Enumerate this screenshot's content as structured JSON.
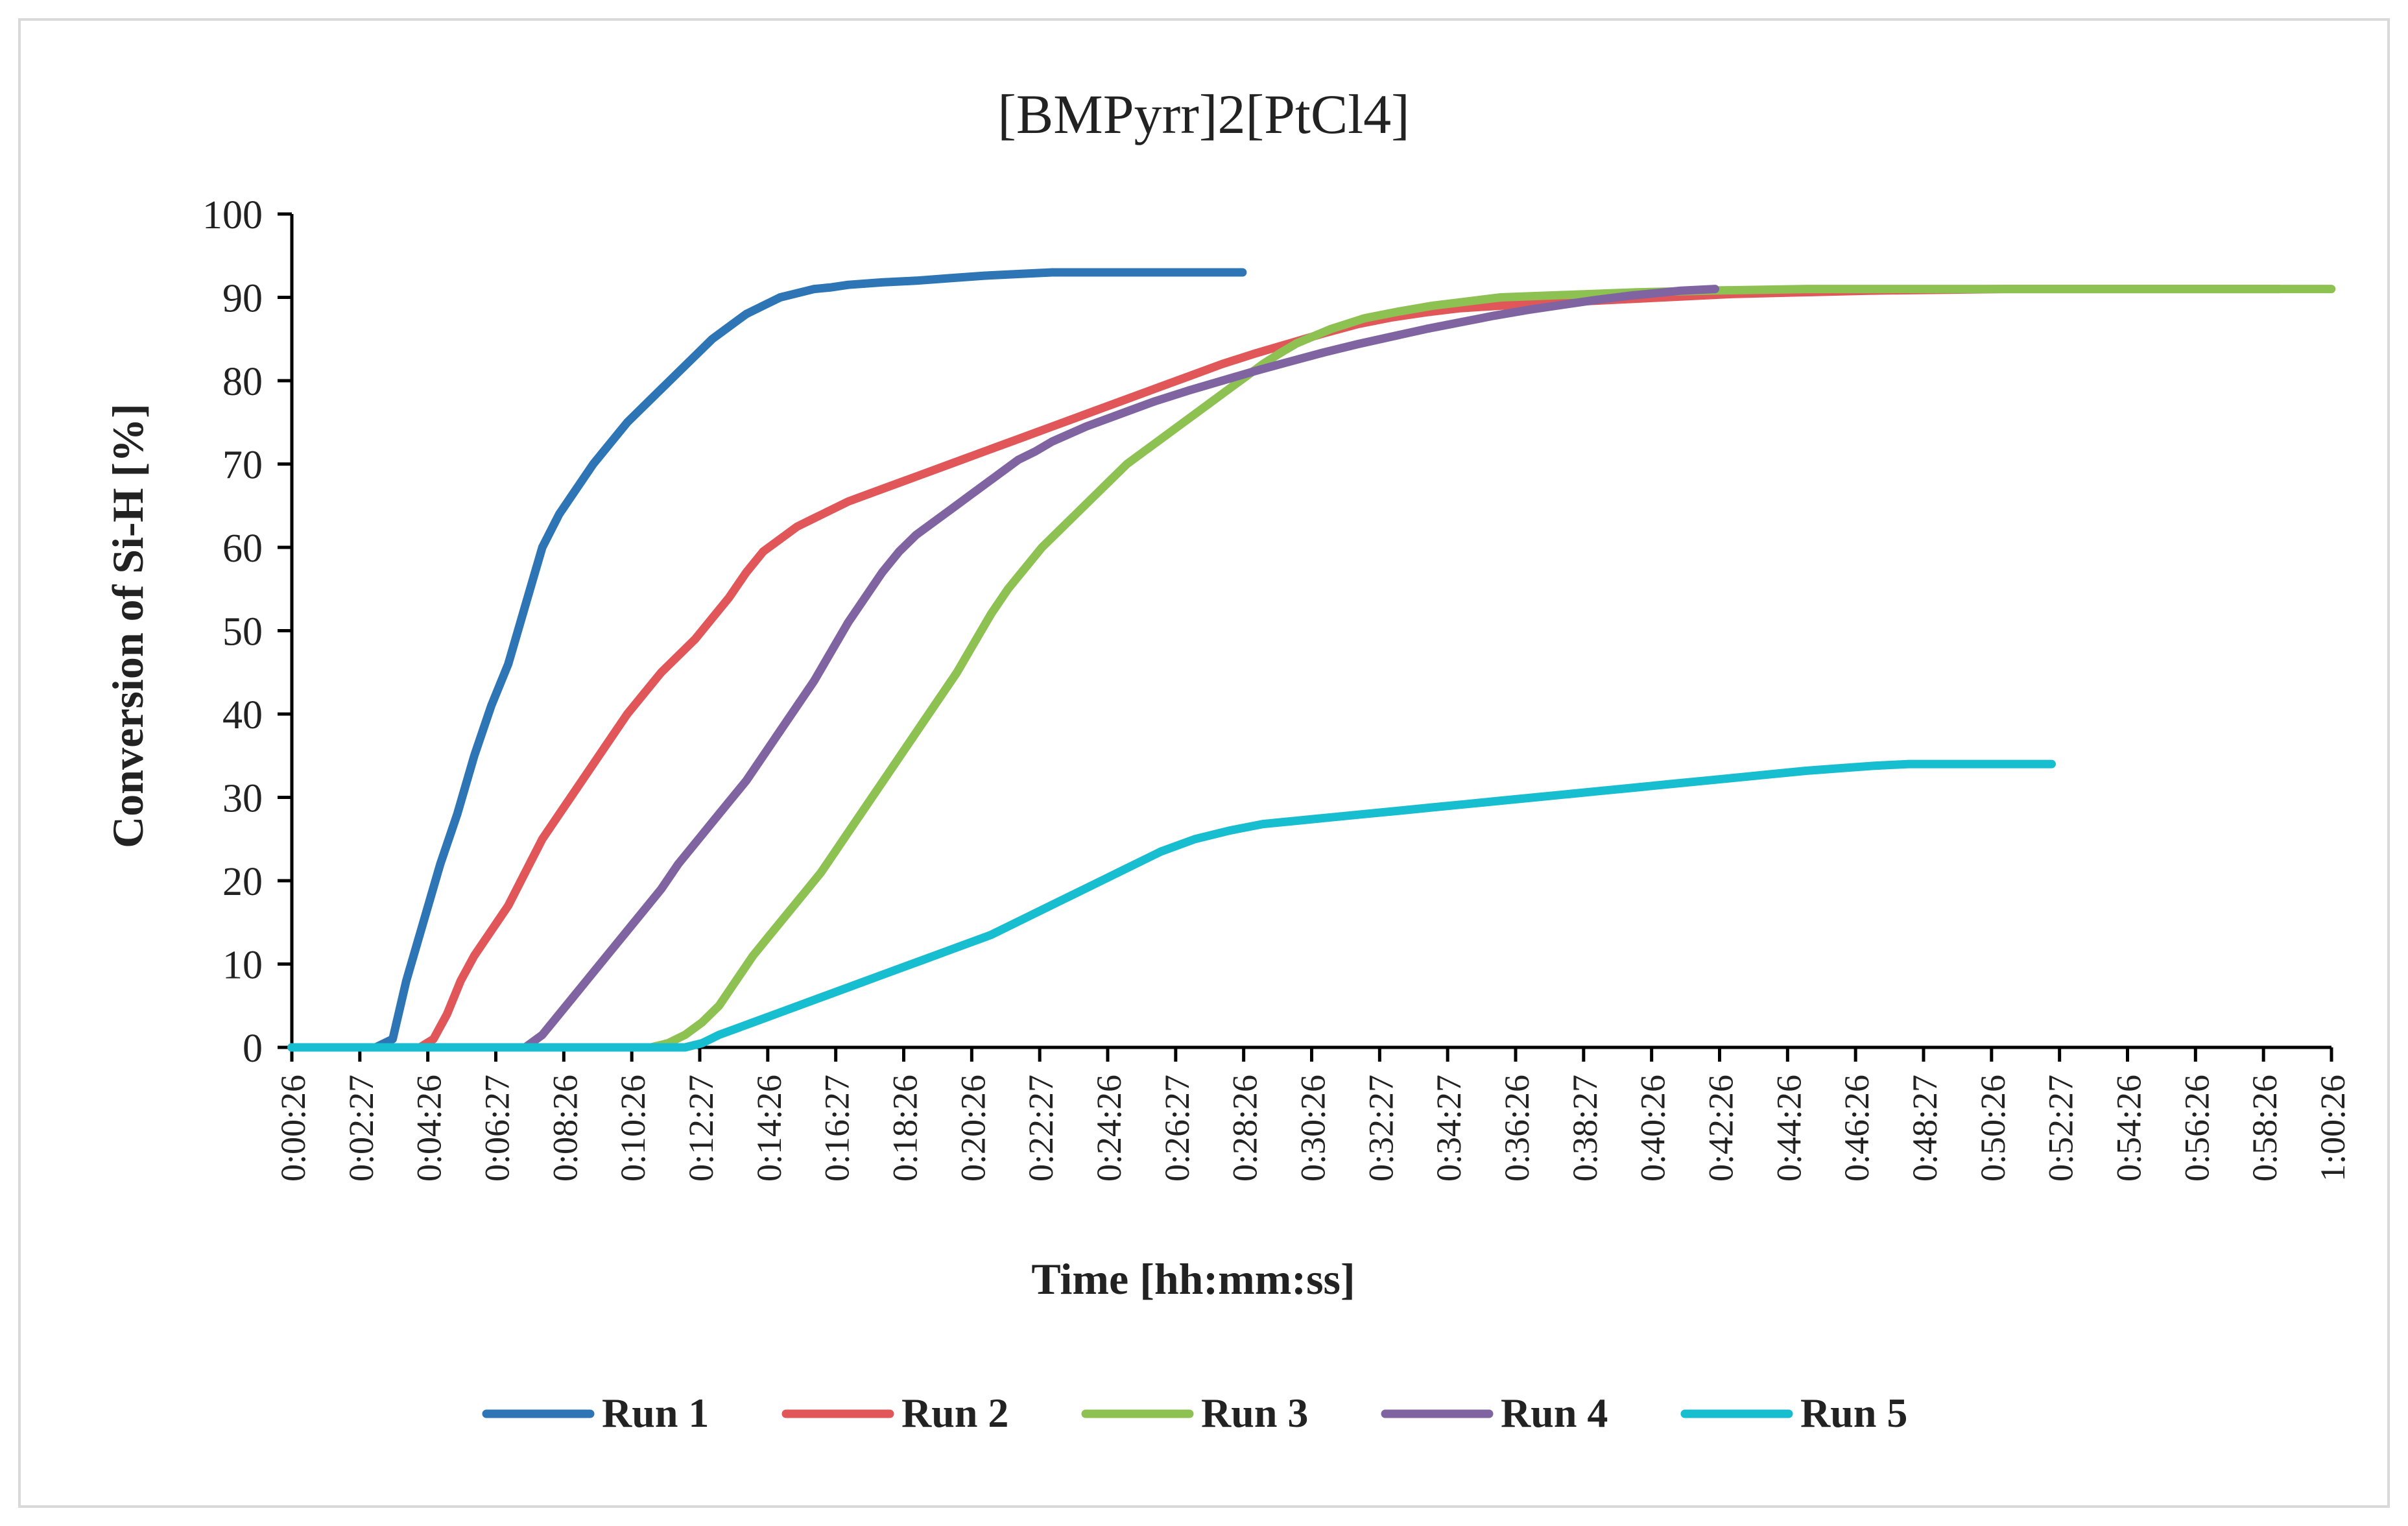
{
  "chart_data": {
    "type": "line",
    "title": "[BMPyrr]2[PtCl4]",
    "xlabel": "Time [hh:mm:ss]",
    "ylabel": "Conversion of Si-H [%]",
    "ylim": [
      0,
      100
    ],
    "yticks": [
      0,
      10,
      20,
      30,
      40,
      50,
      60,
      70,
      80,
      90,
      100
    ],
    "xlim_minutes": [
      0.433,
      60.433
    ],
    "xtick_labels": [
      "0:00:26",
      "0:02:27",
      "0:04:26",
      "0:06:27",
      "0:08:26",
      "0:10:26",
      "0:12:27",
      "0:14:26",
      "0:16:27",
      "0:18:26",
      "0:20:26",
      "0:22:27",
      "0:24:26",
      "0:26:27",
      "0:28:26",
      "0:30:26",
      "0:32:27",
      "0:34:27",
      "0:36:26",
      "0:38:27",
      "0:40:26",
      "0:42:26",
      "0:44:26",
      "0:46:26",
      "0:48:27",
      "0:50:26",
      "0:52:27",
      "0:54:26",
      "0:56:26",
      "0:58:26",
      "1:00:26"
    ],
    "grid": false,
    "legend_position": "bottom",
    "x_unit": "minutes",
    "series": [
      {
        "name": "Run 1",
        "color": "#2E75B6",
        "points": [
          [
            0.43,
            0
          ],
          [
            2.9,
            0
          ],
          [
            3.4,
            1
          ],
          [
            3.8,
            8
          ],
          [
            4.3,
            15
          ],
          [
            4.8,
            22
          ],
          [
            5.3,
            28
          ],
          [
            5.8,
            35
          ],
          [
            6.3,
            41
          ],
          [
            6.8,
            46
          ],
          [
            7.3,
            53
          ],
          [
            7.8,
            60
          ],
          [
            8.3,
            64
          ],
          [
            8.8,
            67
          ],
          [
            9.3,
            70
          ],
          [
            9.8,
            72.5
          ],
          [
            10.3,
            75
          ],
          [
            10.8,
            77
          ],
          [
            11.3,
            79
          ],
          [
            11.8,
            81
          ],
          [
            12.3,
            83
          ],
          [
            12.8,
            85
          ],
          [
            13.3,
            86.5
          ],
          [
            13.8,
            88
          ],
          [
            14.3,
            89
          ],
          [
            14.8,
            90
          ],
          [
            15.3,
            90.5
          ],
          [
            15.8,
            91
          ],
          [
            16.3,
            91.2
          ],
          [
            16.8,
            91.5
          ],
          [
            17.8,
            91.8
          ],
          [
            18.8,
            92
          ],
          [
            19.8,
            92.3
          ],
          [
            20.8,
            92.6
          ],
          [
            21.8,
            92.8
          ],
          [
            22.8,
            93
          ],
          [
            24.8,
            93
          ],
          [
            26.8,
            93
          ],
          [
            28.4,
            93
          ]
        ]
      },
      {
        "name": "Run 2",
        "color": "#E15759",
        "points": [
          [
            0.43,
            0
          ],
          [
            4.2,
            0
          ],
          [
            4.6,
            1
          ],
          [
            5.0,
            4
          ],
          [
            5.4,
            8
          ],
          [
            5.8,
            11
          ],
          [
            6.3,
            14
          ],
          [
            6.8,
            17
          ],
          [
            7.3,
            21
          ],
          [
            7.8,
            25
          ],
          [
            8.3,
            28
          ],
          [
            8.8,
            31
          ],
          [
            9.3,
            34
          ],
          [
            9.8,
            37
          ],
          [
            10.3,
            40
          ],
          [
            10.8,
            42.5
          ],
          [
            11.3,
            45
          ],
          [
            11.8,
            47
          ],
          [
            12.3,
            49
          ],
          [
            12.8,
            51.5
          ],
          [
            13.3,
            54
          ],
          [
            13.8,
            57
          ],
          [
            14.3,
            59.5
          ],
          [
            14.8,
            61
          ],
          [
            15.3,
            62.5
          ],
          [
            15.8,
            63.5
          ],
          [
            16.3,
            64.5
          ],
          [
            16.8,
            65.5
          ],
          [
            17.8,
            67
          ],
          [
            18.8,
            68.5
          ],
          [
            19.8,
            70
          ],
          [
            20.8,
            71.5
          ],
          [
            21.8,
            73
          ],
          [
            22.8,
            74.5
          ],
          [
            23.8,
            76
          ],
          [
            24.8,
            77.5
          ],
          [
            25.8,
            79
          ],
          [
            26.8,
            80.5
          ],
          [
            27.8,
            82
          ],
          [
            28.8,
            83.3
          ],
          [
            29.8,
            84.5
          ],
          [
            30.8,
            85.7
          ],
          [
            31.8,
            86.8
          ],
          [
            32.8,
            87.6
          ],
          [
            33.8,
            88.2
          ],
          [
            34.8,
            88.7
          ],
          [
            36.8,
            89.2
          ],
          [
            38.8,
            89.6
          ],
          [
            40.8,
            90
          ],
          [
            42.8,
            90.4
          ],
          [
            44.8,
            90.6
          ],
          [
            46.8,
            90.8
          ],
          [
            50.8,
            91
          ],
          [
            55.8,
            91
          ],
          [
            58.9,
            91
          ]
        ]
      },
      {
        "name": "Run 3",
        "color": "#8DC152",
        "points": [
          [
            0.43,
            0
          ],
          [
            11.0,
            0
          ],
          [
            11.5,
            0.5
          ],
          [
            12.0,
            1.5
          ],
          [
            12.5,
            3
          ],
          [
            13.0,
            5
          ],
          [
            13.5,
            8
          ],
          [
            14.0,
            11
          ],
          [
            14.5,
            13.5
          ],
          [
            15.0,
            16
          ],
          [
            15.5,
            18.5
          ],
          [
            16.0,
            21
          ],
          [
            16.5,
            24
          ],
          [
            17.0,
            27
          ],
          [
            17.5,
            30
          ],
          [
            18.0,
            33
          ],
          [
            18.5,
            36
          ],
          [
            19.0,
            39
          ],
          [
            19.5,
            42
          ],
          [
            20.0,
            45
          ],
          [
            20.5,
            48.5
          ],
          [
            21.0,
            52
          ],
          [
            21.5,
            55
          ],
          [
            22.0,
            57.5
          ],
          [
            22.5,
            60
          ],
          [
            23.0,
            62
          ],
          [
            23.5,
            64
          ],
          [
            24.0,
            66
          ],
          [
            24.5,
            68
          ],
          [
            25.0,
            70
          ],
          [
            25.5,
            71.5
          ],
          [
            26.0,
            73
          ],
          [
            26.5,
            74.5
          ],
          [
            27.0,
            76
          ],
          [
            27.5,
            77.5
          ],
          [
            28.0,
            79
          ],
          [
            28.5,
            80.5
          ],
          [
            29.0,
            82
          ],
          [
            29.5,
            83.3
          ],
          [
            30.0,
            84.5
          ],
          [
            31.0,
            86.2
          ],
          [
            32.0,
            87.5
          ],
          [
            33.0,
            88.3
          ],
          [
            34.0,
            89
          ],
          [
            35.0,
            89.5
          ],
          [
            36.0,
            90
          ],
          [
            38.0,
            90.3
          ],
          [
            40.0,
            90.6
          ],
          [
            42.0,
            90.8
          ],
          [
            45.0,
            91
          ],
          [
            50.0,
            91
          ],
          [
            55.0,
            91
          ],
          [
            60.43,
            91
          ]
        ]
      },
      {
        "name": "Run 4",
        "color": "#8064A2",
        "points": [
          [
            0.43,
            0
          ],
          [
            7.3,
            0
          ],
          [
            7.8,
            1.5
          ],
          [
            8.3,
            4
          ],
          [
            8.8,
            6.5
          ],
          [
            9.3,
            9
          ],
          [
            9.8,
            11.5
          ],
          [
            10.3,
            14
          ],
          [
            10.8,
            16.5
          ],
          [
            11.3,
            19
          ],
          [
            11.8,
            22
          ],
          [
            12.3,
            24.5
          ],
          [
            12.8,
            27
          ],
          [
            13.3,
            29.5
          ],
          [
            13.8,
            32
          ],
          [
            14.3,
            35
          ],
          [
            14.8,
            38
          ],
          [
            15.3,
            41
          ],
          [
            15.8,
            44
          ],
          [
            16.3,
            47.5
          ],
          [
            16.8,
            51
          ],
          [
            17.3,
            54
          ],
          [
            17.8,
            57
          ],
          [
            18.3,
            59.5
          ],
          [
            18.8,
            61.5
          ],
          [
            19.3,
            63
          ],
          [
            19.8,
            64.5
          ],
          [
            20.3,
            66
          ],
          [
            20.8,
            67.5
          ],
          [
            21.3,
            69
          ],
          [
            21.8,
            70.5
          ],
          [
            22.3,
            71.5
          ],
          [
            22.8,
            72.7
          ],
          [
            23.8,
            74.5
          ],
          [
            24.8,
            76
          ],
          [
            25.8,
            77.5
          ],
          [
            26.8,
            78.8
          ],
          [
            27.8,
            80
          ],
          [
            28.8,
            81.2
          ],
          [
            29.8,
            82.3
          ],
          [
            30.8,
            83.4
          ],
          [
            31.8,
            84.4
          ],
          [
            32.8,
            85.3
          ],
          [
            33.8,
            86.2
          ],
          [
            34.8,
            87
          ],
          [
            35.8,
            87.8
          ],
          [
            36.8,
            88.5
          ],
          [
            37.8,
            89.1
          ],
          [
            38.8,
            89.7
          ],
          [
            39.8,
            90.2
          ],
          [
            40.8,
            90.6
          ],
          [
            41.3,
            90.8
          ],
          [
            42.3,
            91
          ]
        ]
      },
      {
        "name": "Run 5",
        "color": "#17BECF",
        "points": [
          [
            0.43,
            0
          ],
          [
            12.0,
            0
          ],
          [
            12.5,
            0.5
          ],
          [
            13.0,
            1.5
          ],
          [
            14.0,
            3
          ],
          [
            15.0,
            4.5
          ],
          [
            16.0,
            6
          ],
          [
            17.0,
            7.5
          ],
          [
            18.0,
            9
          ],
          [
            19.0,
            10.5
          ],
          [
            20.0,
            12
          ],
          [
            21.0,
            13.5
          ],
          [
            22.0,
            15.5
          ],
          [
            23.0,
            17.5
          ],
          [
            24.0,
            19.5
          ],
          [
            25.0,
            21.5
          ],
          [
            26.0,
            23.5
          ],
          [
            27.0,
            25
          ],
          [
            28.0,
            26
          ],
          [
            29.0,
            26.8
          ],
          [
            30.0,
            27.2
          ],
          [
            31.0,
            27.6
          ],
          [
            32.0,
            28
          ],
          [
            33.0,
            28.4
          ],
          [
            34.0,
            28.8
          ],
          [
            35.0,
            29.2
          ],
          [
            36.0,
            29.6
          ],
          [
            37.0,
            30
          ],
          [
            38.0,
            30.4
          ],
          [
            39.0,
            30.8
          ],
          [
            40.0,
            31.2
          ],
          [
            41.0,
            31.6
          ],
          [
            42.0,
            32
          ],
          [
            43.0,
            32.4
          ],
          [
            44.0,
            32.8
          ],
          [
            45.0,
            33.2
          ],
          [
            46.0,
            33.5
          ],
          [
            47.0,
            33.8
          ],
          [
            48.0,
            34
          ],
          [
            49.0,
            34
          ],
          [
            50.0,
            34
          ],
          [
            51.0,
            34
          ],
          [
            52.2,
            34
          ]
        ]
      }
    ]
  }
}
